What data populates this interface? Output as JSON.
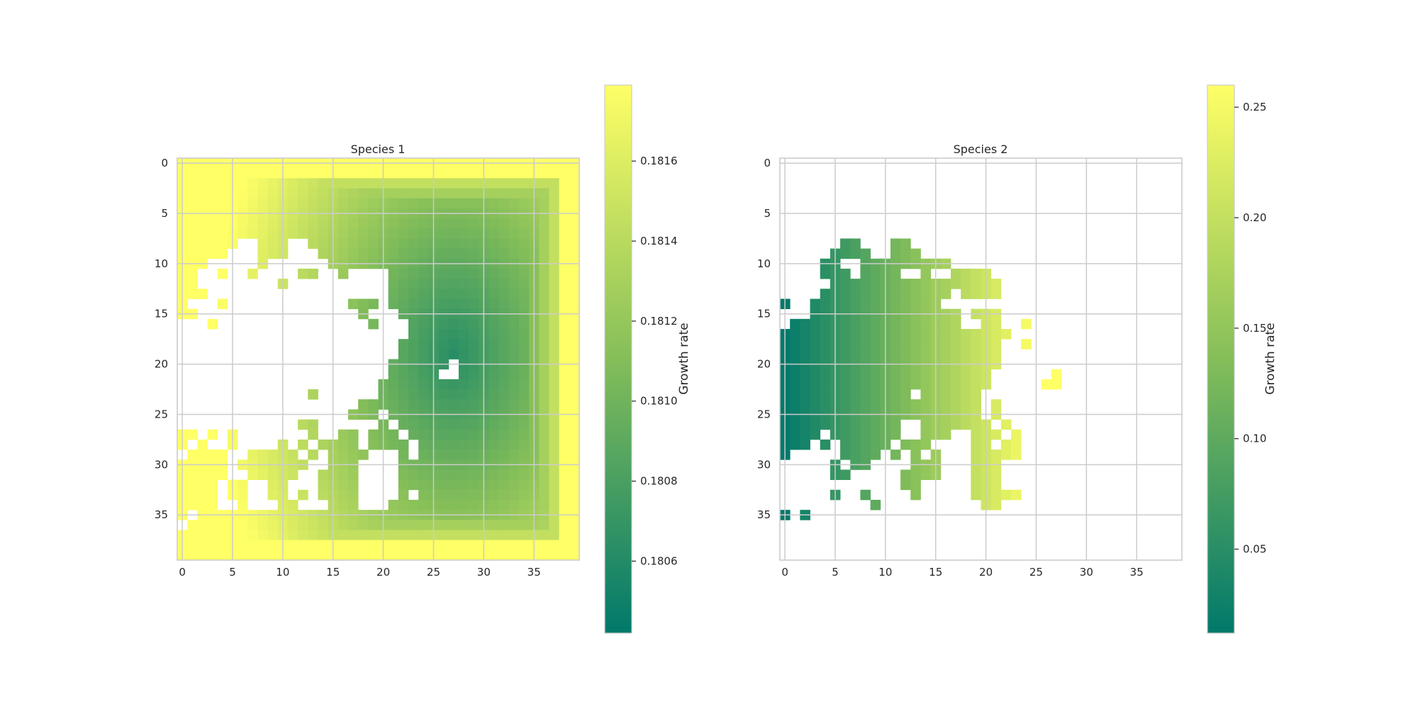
{
  "chart_data": [
    {
      "type": "heatmap",
      "title": "Species 1",
      "grid_size": 40,
      "xticks": [
        0,
        5,
        10,
        15,
        20,
        25,
        30,
        35
      ],
      "yticks": [
        0,
        5,
        10,
        15,
        20,
        25,
        30,
        35
      ],
      "grid": true,
      "value_model": "v = 0.1804 + 0.0014 * (1 - exp(-dist_to_nearest_border / 2.6)) terms; min 0.18042 near centre (row 19, col 27), max 0.18179 at the border",
      "colorbar": {
        "label": "Growth rate",
        "min": 0.18042,
        "max": 0.18179,
        "ticks": [
          0.1806,
          0.1808,
          0.181,
          0.1812,
          0.1814,
          0.1816
        ],
        "tick_labels": [
          "0.1806",
          "0.1808",
          "0.1810",
          "0.1812",
          "0.1814",
          "0.1816"
        ],
        "color_low": "#00796b",
        "color_mid": "#84be59",
        "color_high": "#ffff66"
      },
      "missing_mask": {
        "note": "white cells = no data; rows of [start_col, end_col] column spans per row",
        "rows": {
          "8": [
            [
              6,
              7
            ],
            [
              11,
              12
            ]
          ],
          "9": [
            [
              5,
              7
            ],
            [
              11,
              13
            ]
          ],
          "10": [
            [
              3,
              7
            ],
            [
              9,
              14
            ]
          ],
          "11": [
            [
              2,
              3
            ],
            [
              5,
              6
            ],
            [
              8,
              11
            ],
            [
              14,
              15
            ],
            [
              17,
              20
            ]
          ],
          "12": [
            [
              2,
              9
            ],
            [
              11,
              20
            ]
          ],
          "13": [
            [
              3,
              20
            ]
          ],
          "14": [
            [
              1,
              3
            ],
            [
              5,
              16
            ],
            [
              20,
              20
            ]
          ],
          "15": [
            [
              2,
              17
            ],
            [
              19,
              21
            ]
          ],
          "16": [
            [
              0,
              2
            ],
            [
              4,
              18
            ],
            [
              20,
              22
            ]
          ],
          "17": [
            [
              0,
              22
            ]
          ],
          "18": [
            [
              0,
              21
            ]
          ],
          "19": [
            [
              0,
              21
            ]
          ],
          "20": [
            [
              0,
              20
            ],
            [
              27,
              27
            ]
          ],
          "21": [
            [
              0,
              20
            ],
            [
              26,
              27
            ]
          ],
          "22": [
            [
              0,
              19
            ]
          ],
          "23": [
            [
              0,
              12
            ],
            [
              14,
              19
            ]
          ],
          "24": [
            [
              0,
              17
            ]
          ],
          "25": [
            [
              0,
              16
            ],
            [
              20,
              20
            ]
          ],
          "26": [
            [
              0,
              11
            ],
            [
              14,
              19
            ],
            [
              21,
              21
            ]
          ],
          "27": [
            [
              2,
              2
            ],
            [
              4,
              4
            ],
            [
              6,
              12
            ],
            [
              14,
              15
            ],
            [
              18,
              18
            ],
            [
              22,
              22
            ]
          ],
          "28": [
            [
              1,
              1
            ],
            [
              3,
              4
            ],
            [
              6,
              9
            ],
            [
              11,
              11
            ],
            [
              13,
              13
            ],
            [
              18,
              18
            ],
            [
              23,
              23
            ]
          ],
          "29": [
            [
              0,
              0
            ],
            [
              5,
              6
            ],
            [
              12,
              12
            ],
            [
              14,
              14
            ],
            [
              19,
              21
            ],
            [
              23,
              23
            ]
          ],
          "30": [
            [
              5,
              5
            ],
            [
              13,
              14
            ],
            [
              18,
              21
            ]
          ],
          "31": [
            [
              5,
              6
            ],
            [
              12,
              13
            ],
            [
              18,
              21
            ]
          ],
          "32": [
            [
              4,
              4
            ],
            [
              7,
              8
            ],
            [
              11,
              13
            ],
            [
              18,
              21
            ]
          ],
          "33": [
            [
              4,
              4
            ],
            [
              7,
              8
            ],
            [
              11,
              11
            ],
            [
              13,
              13
            ],
            [
              18,
              21
            ],
            [
              23,
              23
            ]
          ],
          "34": [
            [
              4,
              5
            ],
            [
              7,
              9
            ],
            [
              12,
              14
            ],
            [
              18,
              20
            ]
          ],
          "35": [
            [
              1,
              1
            ]
          ],
          "36": [
            [
              0,
              0
            ]
          ]
        }
      }
    },
    {
      "type": "heatmap",
      "title": "Species 2",
      "grid_size": 40,
      "xticks": [
        0,
        5,
        10,
        15,
        20,
        25,
        30,
        35
      ],
      "yticks": [
        0,
        5,
        10,
        15,
        20,
        25,
        30,
        35
      ],
      "grid": true,
      "value_model": "values increase with column: approx 0.015 at column 0 to 0.24 at column 24, outlier 0.26 at cells near col 27-28",
      "colorbar": {
        "label": "Growth rate",
        "min": 0.012,
        "max": 0.26,
        "ticks": [
          0.05,
          0.1,
          0.15,
          0.2,
          0.25
        ],
        "tick_labels": [
          "0.05",
          "0.10",
          "0.15",
          "0.20",
          "0.25"
        ],
        "color_low": "#00796b",
        "color_mid": "#84be59",
        "color_high": "#ffff66"
      },
      "present_mask": {
        "note": "coloured cells only; rows of [start_col, end_col] column spans per row",
        "rows": {
          "8": [
            [
              6,
              7
            ],
            [
              11,
              12
            ]
          ],
          "9": [
            [
              5,
              8
            ],
            [
              11,
              13
            ]
          ],
          "10": [
            [
              4,
              5
            ],
            [
              8,
              16
            ]
          ],
          "11": [
            [
              4,
              6
            ],
            [
              8,
              11
            ],
            [
              14,
              14
            ],
            [
              17,
              20
            ]
          ],
          "12": [
            [
              5,
              21
            ]
          ],
          "13": [
            [
              4,
              16
            ],
            [
              18,
              21
            ]
          ],
          "14": [
            [
              0,
              0
            ],
            [
              3,
              15
            ]
          ],
          "15": [
            [
              3,
              17
            ],
            [
              19,
              21
            ]
          ],
          "16": [
            [
              1,
              17
            ],
            [
              20,
              21
            ],
            [
              24,
              24
            ]
          ],
          "17": [
            [
              0,
              22
            ]
          ],
          "18": [
            [
              0,
              21
            ],
            [
              24,
              24
            ]
          ],
          "19": [
            [
              0,
              21
            ]
          ],
          "20": [
            [
              0,
              21
            ]
          ],
          "21": [
            [
              0,
              20
            ],
            [
              27,
              27
            ]
          ],
          "22": [
            [
              0,
              20
            ],
            [
              26,
              27
            ]
          ],
          "23": [
            [
              0,
              12
            ],
            [
              14,
              19
            ]
          ],
          "24": [
            [
              0,
              19
            ],
            [
              21,
              21
            ]
          ],
          "25": [
            [
              0,
              19
            ],
            [
              21,
              21
            ]
          ],
          "26": [
            [
              0,
              11
            ],
            [
              14,
              20
            ],
            [
              22,
              22
            ]
          ],
          "27": [
            [
              0,
              3
            ],
            [
              5,
              11
            ],
            [
              14,
              16
            ],
            [
              19,
              21
            ],
            [
              23,
              23
            ]
          ],
          "28": [
            [
              0,
              2
            ],
            [
              4,
              4
            ],
            [
              6,
              10
            ],
            [
              12,
              14
            ],
            [
              19,
              20
            ],
            [
              22,
              23
            ]
          ],
          "29": [
            [
              0,
              0
            ],
            [
              6,
              9
            ],
            [
              11,
              11
            ],
            [
              13,
              13
            ],
            [
              15,
              15
            ],
            [
              19,
              23
            ]
          ],
          "30": [
            [
              5,
              5
            ],
            [
              7,
              8
            ],
            [
              13,
              15
            ],
            [
              19,
              21
            ]
          ],
          "31": [
            [
              5,
              6
            ],
            [
              12,
              15
            ],
            [
              19,
              21
            ]
          ],
          "32": [
            [
              12,
              13
            ],
            [
              19,
              21
            ]
          ],
          "33": [
            [
              5,
              5
            ],
            [
              8,
              8
            ],
            [
              13,
              13
            ],
            [
              19,
              23
            ]
          ],
          "34": [
            [
              9,
              9
            ],
            [
              20,
              21
            ]
          ],
          "35": [
            [
              0,
              0
            ],
            [
              2,
              2
            ]
          ]
        }
      }
    }
  ]
}
